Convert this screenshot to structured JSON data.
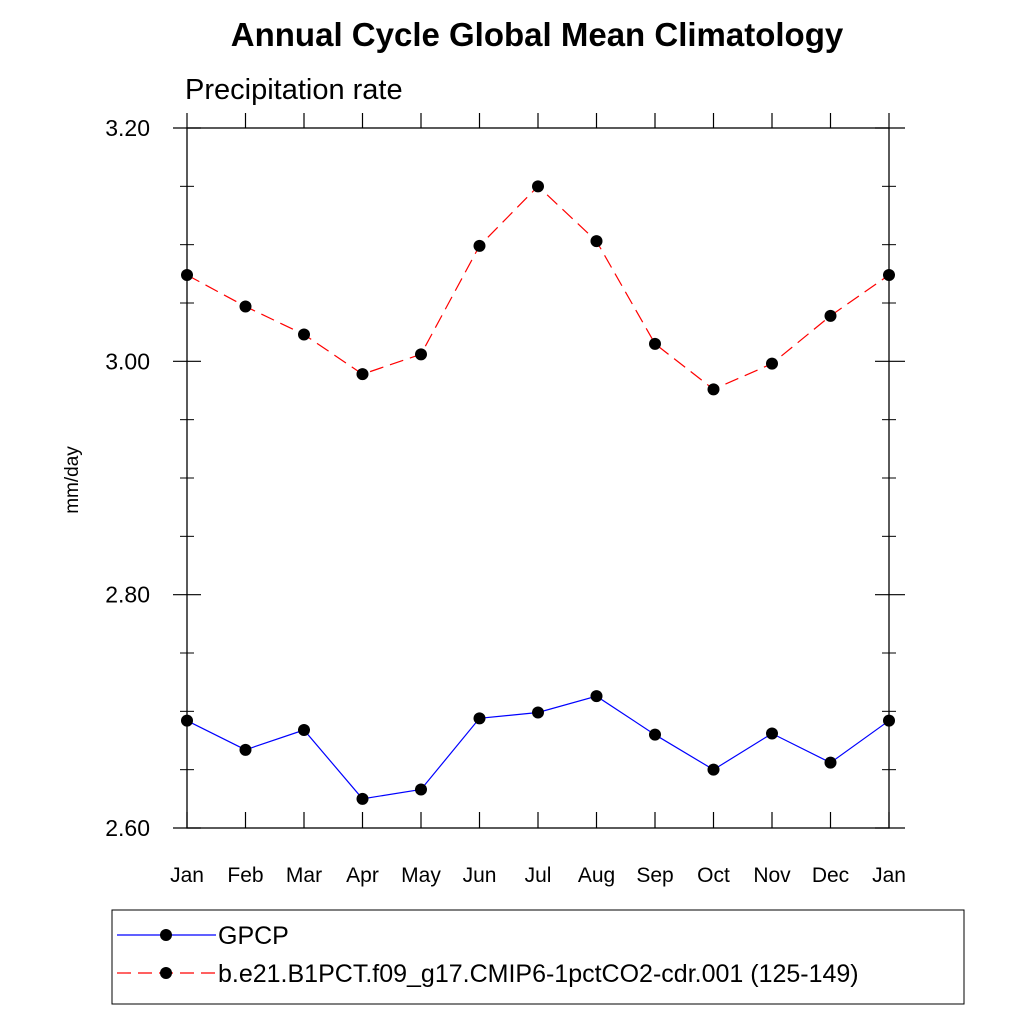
{
  "chart_data": {
    "type": "line",
    "title": "Annual Cycle Global Mean Climatology",
    "subtitle": "Precipitation rate",
    "xlabel": "",
    "ylabel": "mm/day",
    "categories": [
      "Jan",
      "Feb",
      "Mar",
      "Apr",
      "May",
      "Jun",
      "Jul",
      "Aug",
      "Sep",
      "Oct",
      "Nov",
      "Dec",
      "Jan"
    ],
    "ylim": [
      2.6,
      3.2
    ],
    "yticks": [
      "2.60",
      "2.80",
      "3.00",
      "3.20"
    ],
    "ytick_values": [
      2.6,
      2.8,
      3.0,
      3.2
    ],
    "yminor_step": 0.05,
    "series": [
      {
        "name": "GPCP",
        "color": "#0000ff",
        "style": "solid",
        "marker": "circle",
        "values": [
          2.692,
          2.667,
          2.684,
          2.625,
          2.633,
          2.694,
          2.699,
          2.713,
          2.68,
          2.65,
          2.681,
          2.656,
          2.692
        ]
      },
      {
        "name": "b.e21.B1PCT.f09_g17.CMIP6-1pctCO2-cdr.001 (125-149)",
        "color": "#ff0000",
        "style": "dashed",
        "marker": "circle",
        "values": [
          3.074,
          3.047,
          3.023,
          2.989,
          3.006,
          3.099,
          3.15,
          3.103,
          3.015,
          2.976,
          2.998,
          3.039,
          3.074
        ]
      }
    ],
    "legend_position": "bottom"
  }
}
